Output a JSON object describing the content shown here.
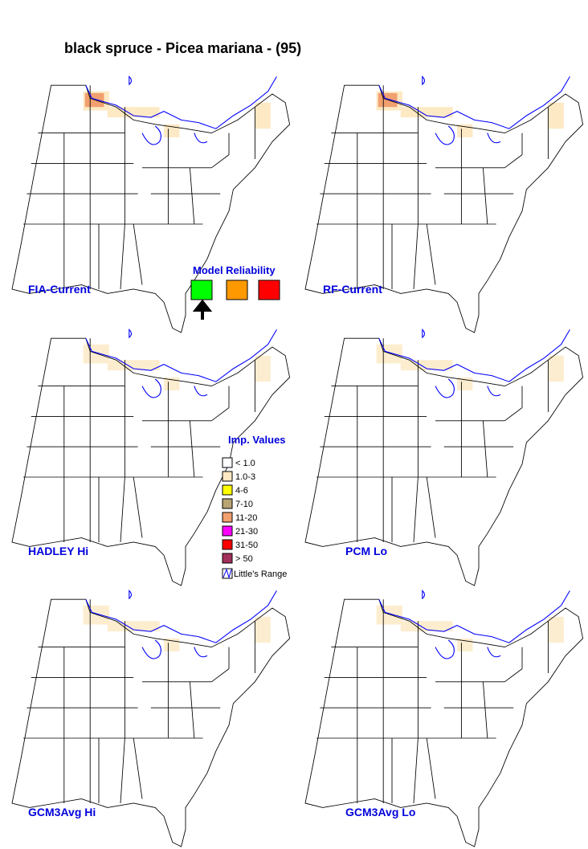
{
  "title": "black spruce - Picea mariana - (95)",
  "panels": [
    {
      "label": "FIA-Current"
    },
    {
      "label": "RF-Current"
    },
    {
      "label": "HADLEY Hi"
    },
    {
      "label": "PCM Lo"
    },
    {
      "label": "GCM3Avg Hi"
    },
    {
      "label": "GCM3Avg Lo"
    }
  ],
  "model_reliability": {
    "title": "Model Reliability"
  },
  "legend": {
    "title": "Imp. Values",
    "items": [
      {
        "label": "< 1.0",
        "color": "#ffffff"
      },
      {
        "label": "1.0-3",
        "color": "#fde9c4"
      },
      {
        "label": "4-6",
        "color": "#ffff00"
      },
      {
        "label": "7-10",
        "color": "#b9a574"
      },
      {
        "label": "11-20",
        "color": "#f2a070"
      },
      {
        "label": "21-30",
        "color": "#ff00ff"
      },
      {
        "label": "31-50",
        "color": "#ff0000"
      },
      {
        "label": "> 50",
        "color": "#a3305c"
      }
    ],
    "range_label": "Little's Range"
  }
}
